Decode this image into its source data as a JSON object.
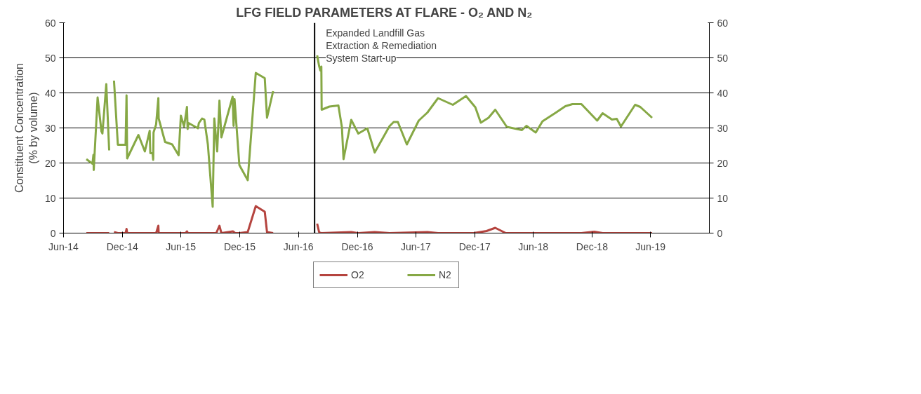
{
  "chart_data": {
    "type": "line",
    "title": "LFG FIELD PARAMETERS  AT FLARE - O₂ AND N₂",
    "ylabel": "Constituent Concentration\n(% by volume)",
    "xlim": [
      "2014-06-01",
      "2019-12-01"
    ],
    "xticks": [
      {
        "value": "2014-06-01",
        "label": "Jun-14"
      },
      {
        "value": "2014-12-01",
        "label": "Dec-14"
      },
      {
        "value": "2015-06-01",
        "label": "Jun-15"
      },
      {
        "value": "2015-12-01",
        "label": "Dec-15"
      },
      {
        "value": "2016-06-01",
        "label": "Jun-16"
      },
      {
        "value": "2016-12-01",
        "label": "Dec-16"
      },
      {
        "value": "2017-06-01",
        "label": "Jun-17"
      },
      {
        "value": "2017-12-01",
        "label": "Dec-17"
      },
      {
        "value": "2018-06-01",
        "label": "Jun-18"
      },
      {
        "value": "2018-12-01",
        "label": "Dec-18"
      },
      {
        "value": "2019-06-01",
        "label": "Jun-19"
      }
    ],
    "ylim": [
      0,
      60
    ],
    "yticks": [
      0,
      10,
      20,
      30,
      40,
      50,
      60
    ],
    "y2lim": [
      0,
      60
    ],
    "y2ticks": [
      0,
      10,
      20,
      30,
      40,
      50,
      60
    ],
    "grid": "y",
    "legend": "bottom",
    "marker": "none",
    "line_style": "solid",
    "ref_lines": [
      {
        "axis": "x",
        "value": "2016-07-21",
        "label": "Expanded Landfill Gas\nExtraction  & Remediation\nSystem Start-up",
        "color": "#000000"
      }
    ],
    "series": [
      {
        "name": "O2",
        "color": "#b5443f",
        "x": [
          "2014-08-11",
          "2014-10-21",
          "2014-10-27",
          "2014-11-05",
          "2014-11-17",
          "2014-12-11",
          "2014-12-14",
          "2014-12-16",
          "2015-03-16",
          "2015-03-23",
          "2015-03-24",
          "2015-06-16",
          "2015-06-20",
          "2015-06-23",
          "2015-09-19",
          "2015-09-29",
          "2015-10-05",
          "2015-11-10",
          "2015-11-17",
          "2015-11-30",
          "2015-12-26",
          "2016-01-20",
          "2016-02-17",
          "2016-02-24",
          "2016-03-14",
          "2016-05-01",
          "2016-07-29",
          "2016-08-04",
          "2016-08-11",
          "2016-11-12",
          "2016-12-04",
          "2017-01-24",
          "2017-03-11",
          "2017-07-07",
          "2017-08-09",
          "2017-11-28",
          "2018-01-07",
          "2018-02-03",
          "2018-03-08",
          "2018-10-29",
          "2018-12-08",
          "2019-01-03",
          "2019-06-06"
        ],
        "values": [
          0,
          0,
          null,
          0.3,
          0,
          0,
          1.2,
          0,
          0,
          2.1,
          0,
          0,
          0.5,
          0,
          0,
          2.1,
          0,
          0.5,
          0,
          0,
          0.3,
          7.7,
          6.1,
          0.3,
          0,
          null,
          2.7,
          0.3,
          0,
          0.3,
          0,
          0.3,
          0,
          0.3,
          0,
          0,
          0.6,
          1.5,
          0,
          0,
          0.4,
          0,
          0
        ]
      },
      {
        "name": "N2",
        "color": "#86a845",
        "x": [
          "2014-08-11",
          "2014-08-30",
          "2014-09-02",
          "2014-09-03",
          "2014-09-15",
          "2014-09-27",
          "2014-09-30",
          "2014-10-12",
          "2014-10-21",
          "2014-10-27",
          "2014-11-05",
          "2014-11-17",
          "2014-12-11",
          "2014-12-14",
          "2014-12-16",
          "2015-01-20",
          "2015-02-09",
          "2015-02-24",
          "2015-02-26",
          "2015-03-05",
          "2015-03-07",
          "2015-03-08",
          "2015-03-16",
          "2015-03-23",
          "2015-03-24",
          "2015-04-13",
          "2015-05-05",
          "2015-05-25",
          "2015-06-01",
          "2015-06-11",
          "2015-06-20",
          "2015-06-22",
          "2015-06-25",
          "2015-07-24",
          "2015-07-27",
          "2015-08-06",
          "2015-08-13",
          "2015-08-24",
          "2015-09-08",
          "2015-09-13",
          "2015-09-22",
          "2015-09-29",
          "2015-10-05",
          "2015-11-09",
          "2015-11-12",
          "2015-11-15",
          "2015-11-30",
          "2015-12-26",
          "2016-01-20",
          "2016-02-17",
          "2016-02-24",
          "2016-03-14",
          "2016-05-01",
          "2016-07-29",
          "2016-08-04",
          "2016-08-08",
          "2016-08-11",
          "2016-08-12",
          "2016-09-05",
          "2016-10-03",
          "2016-10-14",
          "2016-10-19",
          "2016-11-12",
          "2016-12-04",
          "2017-01-01",
          "2017-01-24",
          "2017-03-11",
          "2017-03-24",
          "2017-04-06",
          "2017-05-04",
          "2017-06-10",
          "2017-07-07",
          "2017-08-09",
          "2017-09-24",
          "2017-11-04",
          "2017-12-03",
          "2017-12-20",
          "2018-01-13",
          "2018-02-03",
          "2018-03-11",
          "2018-04-27",
          "2018-05-11",
          "2018-06-09",
          "2018-06-30",
          "2018-08-11",
          "2018-09-09",
          "2018-10-01",
          "2018-10-29",
          "2018-12-17",
          "2019-01-03",
          "2019-02-01",
          "2019-02-16",
          "2019-03-01",
          "2019-04-14",
          "2019-04-30",
          "2019-06-06"
        ],
        "values": [
          21.1,
          19.8,
          22.3,
          18.0,
          38.7,
          29.0,
          28.4,
          42.5,
          23.6,
          null,
          43.5,
          25.2,
          25.2,
          39.3,
          21.3,
          28.0,
          23.3,
          29.2,
          22.8,
          22.8,
          20.9,
          28.7,
          31.0,
          38.5,
          32.7,
          26.0,
          25.3,
          22.2,
          33.5,
          30.4,
          36.0,
          29.7,
          31.4,
          29.9,
          31.4,
          32.7,
          32.4,
          25.3,
          7.5,
          32.7,
          23.3,
          37.8,
          27.3,
          38.9,
          30.6,
          38.2,
          19.4,
          15.1,
          45.7,
          44.2,
          32.9,
          40.5,
          null,
          50.7,
          47.7,
          46.4,
          47.5,
          35.2,
          36.1,
          36.4,
          30.2,
          21.1,
          32.3,
          28.4,
          29.9,
          23.0,
          30.5,
          31.7,
          31.7,
          25.3,
          32.1,
          34.4,
          38.5,
          36.6,
          39.1,
          35.9,
          31.5,
          32.9,
          35.2,
          30.3,
          29.4,
          30.6,
          28.7,
          31.9,
          34.4,
          36.2,
          36.8,
          36.8,
          32.1,
          34.2,
          32.4,
          32.6,
          30.4,
          36.6,
          36.0,
          32.9
        ]
      }
    ]
  }
}
